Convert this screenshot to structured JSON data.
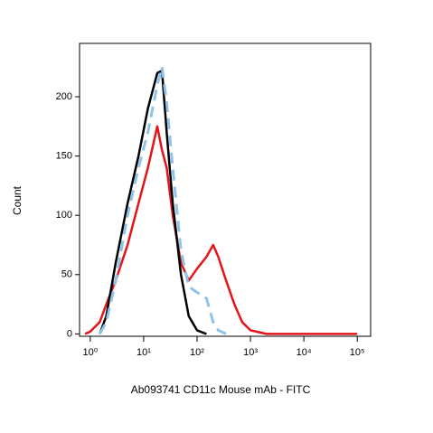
{
  "chart_data": {
    "type": "line",
    "xlabel": "Ab093741 CD11c Mouse mAb - FITC",
    "ylabel": "Count",
    "xscale": "log",
    "x": [
      0.8,
      1,
      1.5,
      2,
      3,
      5,
      8,
      12,
      18,
      22,
      27,
      35,
      50,
      70,
      100,
      150,
      200,
      250,
      350,
      500,
      700,
      1000,
      2000,
      100000
    ],
    "series": [
      {
        "color": "#e3151a",
        "dash": false,
        "values": [
          0,
          2,
          10,
          25,
          45,
          75,
          110,
          140,
          175,
          155,
          140,
          100,
          60,
          45,
          55,
          65,
          75,
          65,
          45,
          25,
          10,
          3,
          0,
          0
        ]
      },
      {
        "color": "#000000",
        "dash": false,
        "values": [
          null,
          null,
          0,
          15,
          60,
          110,
          150,
          190,
          220,
          222,
          170,
          110,
          50,
          15,
          3,
          0,
          null,
          null,
          null,
          null,
          null,
          null,
          null,
          null
        ]
      },
      {
        "color": "#8ec3ea",
        "dash": true,
        "values": [
          null,
          null,
          0,
          10,
          45,
          100,
          140,
          170,
          210,
          225,
          195,
          140,
          70,
          40,
          35,
          30,
          10,
          3,
          0,
          null,
          null,
          null,
          null,
          null
        ]
      }
    ],
    "xlim": [
      0.63,
      178000
    ],
    "ylim": [
      -2,
      245
    ],
    "xticks": [
      {
        "value": 1,
        "label": "10⁰"
      },
      {
        "value": 10,
        "label": "10¹"
      },
      {
        "value": 100,
        "label": "10²"
      },
      {
        "value": 1000,
        "label": "10³"
      },
      {
        "value": 10000,
        "label": "10⁴"
      },
      {
        "value": 100000,
        "label": "10⁵"
      }
    ],
    "yticks": [
      0,
      50,
      100,
      150,
      200
    ]
  }
}
